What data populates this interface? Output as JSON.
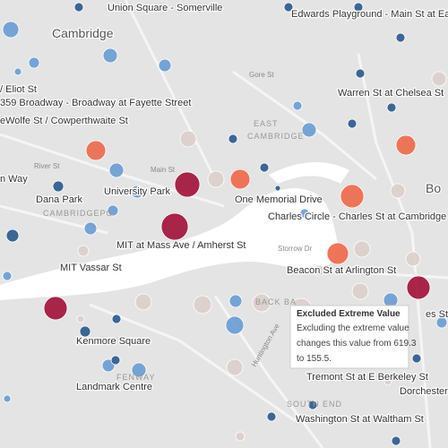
{
  "map": {
    "labels": [
      {
        "text": "Union Square - Somerville",
        "kind": "station"
      },
      {
        "text": "Edwards Playground - Main St at Eastern Ave",
        "kind": "station"
      },
      {
        "text": "Cambridge",
        "kind": "place"
      },
      {
        "text": "/ Eliot St",
        "kind": "station"
      },
      {
        "text": "359 Broadway - Broadway at Fayette Street",
        "kind": "station"
      },
      {
        "text": "eWolfe St / Cowperthwaite St",
        "kind": "station"
      },
      {
        "text": "Warren St at Chelsea St",
        "kind": "station"
      },
      {
        "text": "Gore St",
        "kind": "street"
      },
      {
        "text": "EAST",
        "kind": "area"
      },
      {
        "text": "CAMBRIDGE",
        "kind": "area"
      },
      {
        "text": "Main St",
        "kind": "street"
      },
      {
        "text": "River St",
        "kind": "street"
      },
      {
        "text": "n Way",
        "kind": "station"
      },
      {
        "text": "Dana Park",
        "kind": "station"
      },
      {
        "text": "University Park",
        "kind": "station"
      },
      {
        "text": "One Memorial Drive",
        "kind": "station"
      },
      {
        "text": "Bo",
        "kind": "place"
      },
      {
        "text": "CAMBRIDGEPO",
        "kind": "area"
      },
      {
        "text": "Charles Circle - Charles St at Cambridge St",
        "kind": "station"
      },
      {
        "text": "MIT at Mass Ave / Amherst St",
        "kind": "station"
      },
      {
        "text": "MIT Vassar St",
        "kind": "station"
      },
      {
        "text": "Storrow Dr",
        "kind": "street"
      },
      {
        "text": "Beacon St at Arlington St",
        "kind": "station"
      },
      {
        "text": "BACK BA",
        "kind": "area"
      },
      {
        "text": "es St",
        "kind": "station"
      },
      {
        "text": "Kenmore Square",
        "kind": "station"
      },
      {
        "text": "FENWAY",
        "kind": "area"
      },
      {
        "text": "Landmark Centre",
        "kind": "station"
      },
      {
        "text": "Huntington Ave",
        "kind": "street"
      },
      {
        "text": "Tremont St at E Berkeley St",
        "kind": "station"
      },
      {
        "text": "Dorchester A",
        "kind": "station"
      },
      {
        "text": "SOUTH END",
        "kind": "area"
      },
      {
        "text": "Washington St at Waltham St",
        "kind": "station"
      }
    ],
    "tooltip": {
      "title": "Excluded Extreme Value",
      "lines": [
        "Excluding the extreme value",
        "changes this value from 619.3",
        "to 155.5."
      ]
    }
  }
}
